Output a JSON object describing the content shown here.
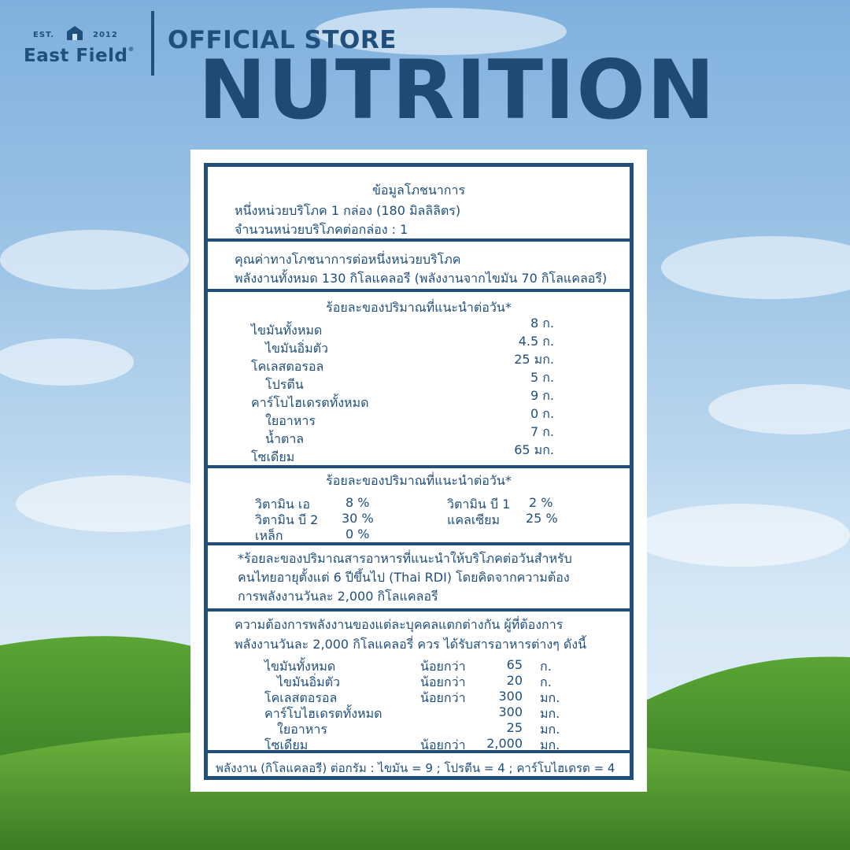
{
  "brand": {
    "est": "EST.",
    "year": "2012",
    "name": "East Field",
    "reg": "®"
  },
  "header": {
    "store": "OFFICIAL STORE",
    "title": "NUTRITION"
  },
  "label": {
    "s1": {
      "title": "ข้อมูลโภชนาการ",
      "serving": "หนึ่งหน่วยบริโภค 1 กล่อง (180 มิลลิลิตร)",
      "servings_per": "จำนวนหน่วยบริโภคต่อกล่อง : 1"
    },
    "s2": {
      "line1": "คุณค่าทางโภชนาการต่อหนึ่งหน่วยบริโภค",
      "line2": "พลังงานทั้งหมด  130  กิโลแคลอรี (พลังงานจากไขมัน 70 กิโลแคลอรี)"
    },
    "s3": {
      "title": "ร้อยละของปริมาณที่แนะนำต่อวัน*",
      "rows": [
        {
          "name": "ไขมันทั้งหมด",
          "value": "8 ก."
        },
        {
          "name": "ไขมันอิ่มตัว",
          "value": "4.5 ก."
        },
        {
          "name": "โคเลสตอรอล",
          "value": "25 มก."
        },
        {
          "name": "โปรตีน",
          "value": "5  ก."
        },
        {
          "name": "คาร์โบไฮเดรตทั้งหมด",
          "value": "9 ก."
        },
        {
          "name": "ใยอาหาร",
          "value": "0  ก."
        },
        {
          "name": "น้ำตาล",
          "value": "7  ก."
        },
        {
          "name": "โซเดียม",
          "value": "65 มก."
        }
      ]
    },
    "s4": {
      "title": "ร้อยละของปริมาณที่แนะนำต่อวัน*",
      "left": [
        {
          "name": "วิตามิน เอ",
          "value": "8  %"
        },
        {
          "name": "วิตามิน บี 2",
          "value": "30  %"
        },
        {
          "name": "เหล็ก",
          "value": "0  %"
        }
      ],
      "right": [
        {
          "name": "วิตามิน บี 1",
          "value": "2   %"
        },
        {
          "name": "แคลเซียม",
          "value": "25  %"
        }
      ]
    },
    "s5": {
      "line1": "*ร้อยละของปริมาณสารอาหารที่แนะนำให้บริโภคต่อวันสำหรับ",
      "line2": "คนไทยอายุตั้งแต่ 6 ปีขึ้นไป (Thai RDI) โดยคิดจากความต้อง",
      "line3": "การพลังงานวันละ 2,000 กิโลแคลอรี"
    },
    "s6": {
      "line1": "ความต้องการพลังงานของแต่ละบุคคลแตกต่างกัน ผู้ที่ต้องการ",
      "line2": "พลังงานวันละ 2,000 กิโลแคลอรี่ ควร ได้รับสารอาหารต่างๆ ดังนี้",
      "rows": [
        {
          "name": "ไขมันทั้งหมด",
          "qual": "น้อยกว่า",
          "amount": "65",
          "unit": "ก."
        },
        {
          "name": "ไขมันอิ่มตัว",
          "qual": "น้อยกว่า",
          "amount": "20",
          "unit": "ก."
        },
        {
          "name": "โคเลสตอรอล",
          "qual": "น้อยกว่า",
          "amount": "300",
          "unit": "มก."
        },
        {
          "name": "คาร์โบไฮเดรตทั้งหมด",
          "qual": "",
          "amount": "300",
          "unit": "มก."
        },
        {
          "name": "ใยอาหาร",
          "qual": "",
          "amount": "25",
          "unit": "มก."
        },
        {
          "name": "โซเดียม",
          "qual": "น้อยกว่า",
          "amount": "2,000",
          "unit": "มก."
        }
      ]
    },
    "s7": {
      "line": "พลังงาน (กิโลแคลอรี) ต่อกรัม : ไขมัน = 9 ; โปรตีน = 4 ; คาร์โบไฮเดรต = 4"
    }
  },
  "colors": {
    "brand": "#1f4f7a",
    "sky_top": "#7fb0dd",
    "grass": "#3f8a2a"
  }
}
